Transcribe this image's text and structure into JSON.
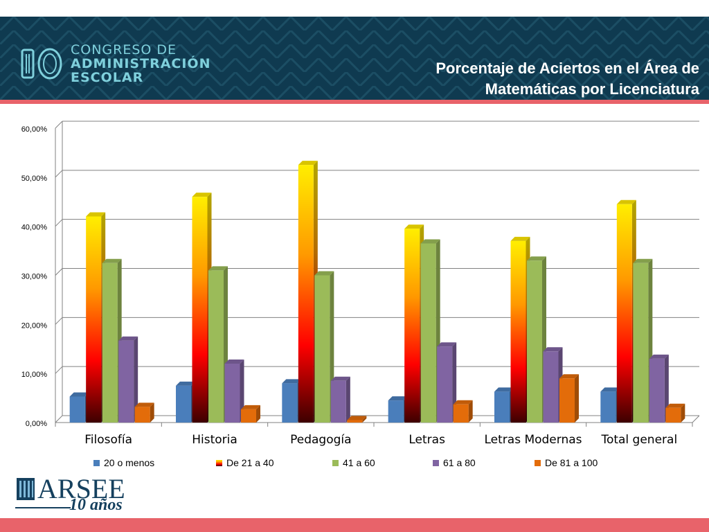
{
  "header": {
    "logo_number": "10",
    "logo_line1": "CONGRESO DE",
    "logo_line2": "ADMINISTRACIÓN",
    "logo_line3": "ESCOLAR",
    "title_line1": "Porcentaje de Aciertos en el Área de",
    "title_line2": "Matemáticas por Licenciatura"
  },
  "footer": {
    "brand": "ARSEE",
    "anniversary": "10 años"
  },
  "colors": {
    "banner": "#0f3a50",
    "accent_stripe": "#e8636a",
    "logo_teal": "#7fd0dc"
  },
  "chart_data": {
    "type": "bar",
    "categories": [
      "Filosofía",
      "Historia",
      "Pedagogía",
      "Letras",
      "Letras Modernas",
      "Total general"
    ],
    "series": [
      {
        "name": "20 o menos",
        "color": "#4a7ebb",
        "values": [
          5.3,
          7.5,
          8.0,
          4.5,
          6.3,
          6.3
        ]
      },
      {
        "name": "De 21 a 40",
        "color": "gradient-yellow-red",
        "values": [
          42.0,
          46.0,
          52.5,
          39.5,
          37.0,
          44.5
        ]
      },
      {
        "name": "41 a 60",
        "color": "#9bbb59",
        "values": [
          32.5,
          31.0,
          30.0,
          36.5,
          33.0,
          32.5
        ]
      },
      {
        "name": "61 a 80",
        "color": "#8064a2",
        "values": [
          16.7,
          12.0,
          8.5,
          15.5,
          14.5,
          13.0
        ]
      },
      {
        "name": "De 81 a 100",
        "color": "#e36c0a",
        "values": [
          3.2,
          2.7,
          0.5,
          3.7,
          9.0,
          3.0
        ]
      }
    ],
    "yticks": [
      "0,00%",
      "10,00%",
      "20,00%",
      "30,00%",
      "40,00%",
      "50,00%",
      "60,00%"
    ],
    "ylim": [
      0,
      60
    ],
    "grid": true,
    "legend": "bottom"
  }
}
